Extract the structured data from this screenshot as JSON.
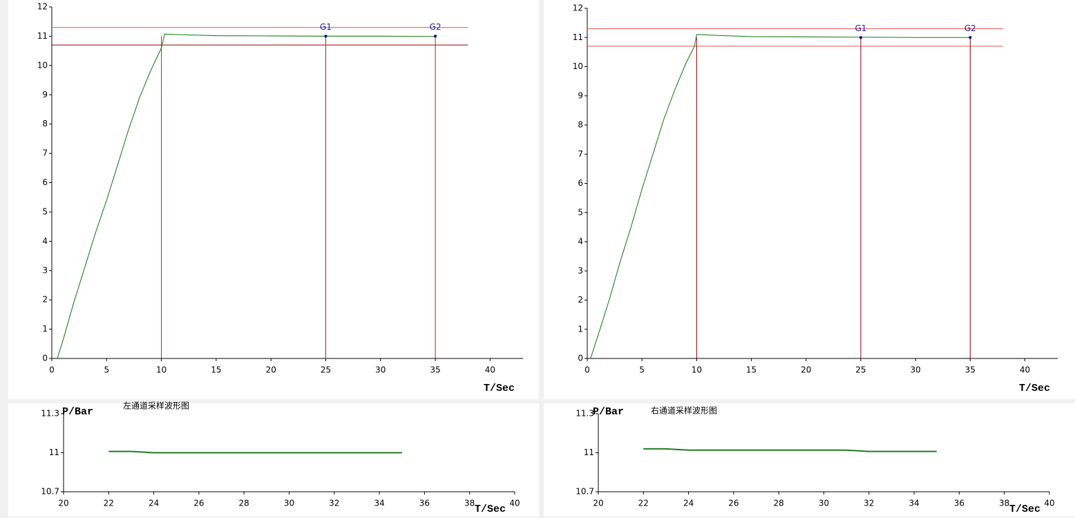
{
  "chart_data": [
    {
      "type": "line",
      "x_label": "T/Sec",
      "xlim": [
        0,
        43
      ],
      "xticks": [
        0,
        5,
        10,
        15,
        20,
        25,
        30,
        35,
        40
      ],
      "ylim": [
        0,
        12
      ],
      "yticks": [
        0,
        1,
        2,
        3,
        4,
        5,
        6,
        7,
        8,
        9,
        10,
        11,
        12
      ],
      "series": [
        {
          "color": "#2e8b2e",
          "x": [
            0.5,
            1,
            2,
            3,
            4,
            5,
            6,
            7,
            8,
            9,
            10,
            10.3,
            12,
            15,
            20,
            25,
            30,
            35
          ],
          "values": [
            0,
            0.6,
            1.9,
            3.1,
            4.3,
            5.4,
            6.6,
            7.8,
            8.9,
            9.8,
            10.6,
            11.07,
            11.05,
            11.02,
            11.01,
            11.0,
            11.0,
            10.99
          ]
        }
      ],
      "hlines": [
        {
          "value": 11.3,
          "color": "#e05050"
        },
        {
          "value": 10.7,
          "color": "#8b0000"
        }
      ],
      "vlines": [
        10,
        25,
        35
      ],
      "vline_color": "#b22222",
      "markers": [
        {
          "label": "G1",
          "x": 25,
          "y": 11
        },
        {
          "label": "G2",
          "x": 35,
          "y": 11
        }
      ]
    },
    {
      "type": "line",
      "x_label": "T/Sec",
      "xlim": [
        0,
        43
      ],
      "xticks": [
        0,
        5,
        10,
        15,
        20,
        25,
        30,
        35,
        40
      ],
      "ylim": [
        0,
        12
      ],
      "yticks": [
        0,
        1,
        2,
        3,
        4,
        5,
        6,
        7,
        8,
        9,
        10,
        11,
        12
      ],
      "series": [
        {
          "color": "#2e8b2e",
          "x": [
            0.3,
            1,
            2,
            3,
            4,
            5,
            6,
            7,
            8,
            9,
            9.8,
            10,
            12,
            15,
            20,
            25,
            30,
            35
          ],
          "values": [
            0,
            0.8,
            2.0,
            3.3,
            4.5,
            5.8,
            7.0,
            8.2,
            9.2,
            10.1,
            10.7,
            11.1,
            11.07,
            11.03,
            11.02,
            11.01,
            11.0,
            11.0
          ]
        }
      ],
      "hlines": [
        {
          "value": 11.3,
          "color": "#e05050"
        },
        {
          "value": 10.7,
          "color": "#e05050"
        }
      ],
      "vlines": [
        10,
        25,
        35
      ],
      "vline_color": "#8b0000",
      "markers": [
        {
          "label": "G1",
          "x": 25,
          "y": 11
        },
        {
          "label": "G2",
          "x": 35,
          "y": 11
        }
      ]
    },
    {
      "type": "line",
      "title": "左通道采样波形图",
      "x_label": "T/Sec",
      "y_label": "P/Bar",
      "xlim": [
        20,
        40
      ],
      "xticks": [
        20,
        22,
        24,
        26,
        28,
        30,
        32,
        34,
        36,
        38,
        40
      ],
      "ylim": [
        10.7,
        11.3
      ],
      "yticks": [
        10.7,
        11,
        11.3
      ],
      "series": [
        {
          "color": "#1f7a1f",
          "x": [
            22,
            23,
            24,
            25,
            26,
            27,
            28,
            29,
            30,
            31,
            32,
            33,
            34,
            35
          ],
          "values": [
            11.01,
            11.01,
            11.0,
            11.0,
            11.0,
            11.0,
            11.0,
            11.0,
            11.0,
            11.0,
            11.0,
            11.0,
            11.0,
            11.0
          ]
        }
      ]
    },
    {
      "type": "line",
      "title": "右通道采样波形图",
      "x_label": "T/Sec",
      "y_label": "P/Bar",
      "xlim": [
        20,
        40
      ],
      "xticks": [
        20,
        22,
        24,
        26,
        28,
        30,
        32,
        34,
        36,
        38,
        40
      ],
      "ylim": [
        10.7,
        11.3
      ],
      "yticks": [
        10.7,
        11,
        11.3
      ],
      "series": [
        {
          "color": "#1f7a1f",
          "x": [
            22,
            23,
            24,
            25,
            26,
            27,
            28,
            29,
            30,
            31,
            32,
            33,
            34,
            35
          ],
          "values": [
            11.03,
            11.03,
            11.02,
            11.02,
            11.02,
            11.02,
            11.02,
            11.02,
            11.02,
            11.02,
            11.01,
            11.01,
            11.01,
            11.01
          ]
        }
      ]
    }
  ]
}
